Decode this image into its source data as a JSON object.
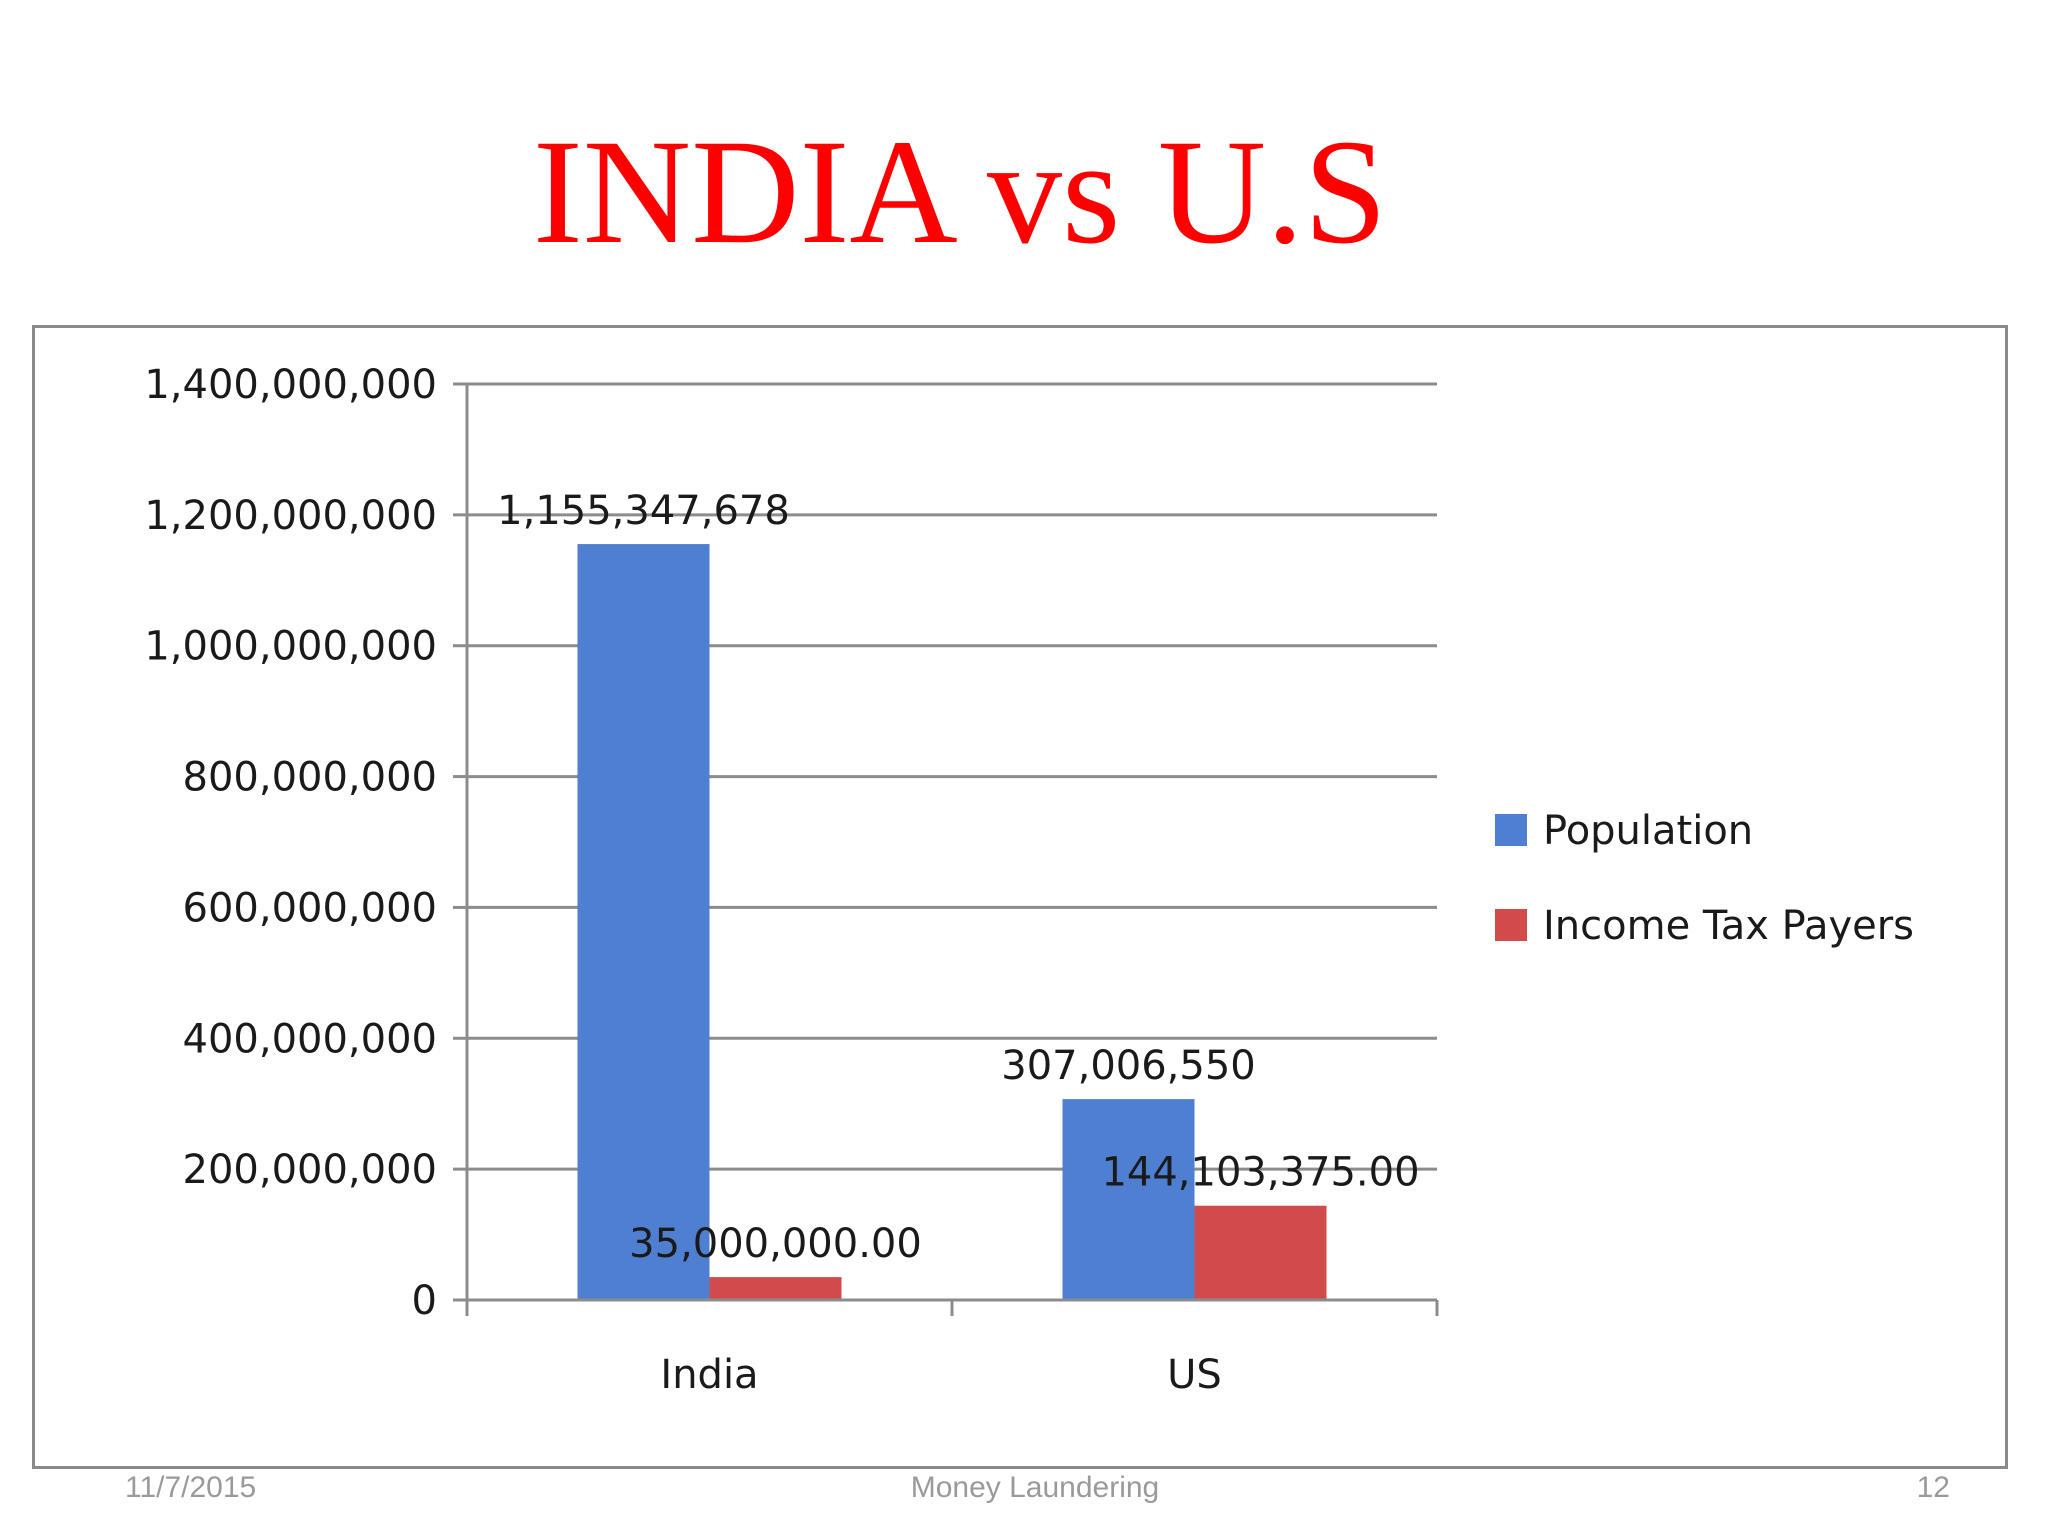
{
  "slide": {
    "title": "INDIA vs U.S",
    "footer_date": "11/7/2015",
    "footer_center": "Money Laundering",
    "page_number": "12"
  },
  "chart_data": {
    "type": "bar",
    "categories": [
      "India",
      "US"
    ],
    "series": [
      {
        "name": "Population",
        "values": [
          1155347678,
          307006550
        ],
        "data_labels": [
          "1,155,347,678",
          "307,006,550"
        ],
        "color": "#4f7fd1"
      },
      {
        "name": "Income Tax Payers",
        "values": [
          35000000,
          144103375
        ],
        "data_labels": [
          "35,000,000.00",
          "144,103,375.00"
        ],
        "color": "#d24b4b"
      }
    ],
    "ylim": [
      0,
      1400000000
    ],
    "y_ticks": [
      0,
      200000000,
      400000000,
      600000000,
      800000000,
      1000000000,
      1200000000,
      1400000000
    ],
    "y_tick_labels": [
      "0",
      "200,000,000",
      "400,000,000",
      "600,000,000",
      "800,000,000",
      "1,000,000,000",
      "1,200,000,000",
      "1,400,000,000"
    ],
    "grid": true,
    "legend_position": "right"
  }
}
